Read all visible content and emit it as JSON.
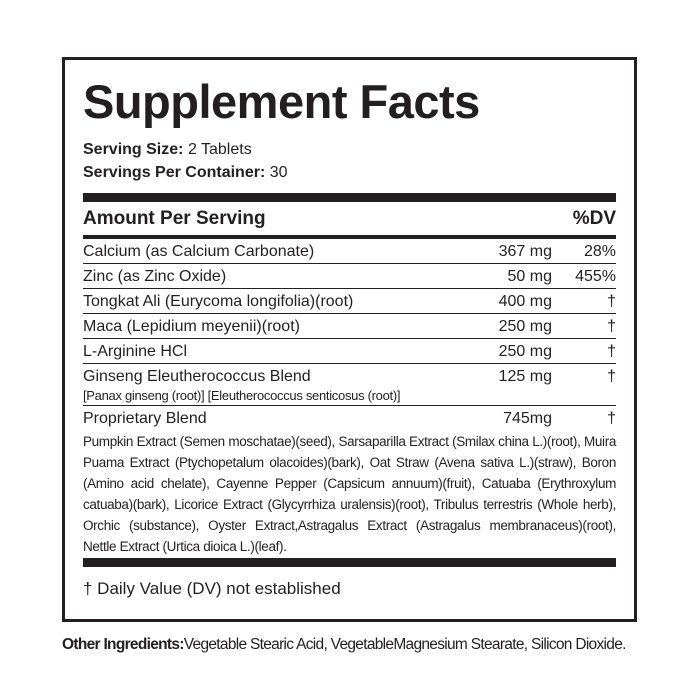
{
  "title": "Supplement Facts",
  "serving_size": {
    "label": "Serving Size:",
    "value": "2 Tablets"
  },
  "servings_per_container": {
    "label": "Servings Per Container:",
    "value": "30"
  },
  "table": {
    "header": {
      "amount": "Amount Per Serving",
      "dv": "%DV"
    },
    "rows": [
      {
        "name": "Calcium (as Calcium Carbonate)",
        "amount": "367 mg",
        "dv": "28%"
      },
      {
        "name": "Zinc (as Zinc Oxide)",
        "amount": "50 mg",
        "dv": "455%"
      },
      {
        "name": "Tongkat Ali (Eurycoma longifolia)(root)",
        "amount": "400 mg",
        "dv": "†"
      },
      {
        "name": "Maca (Lepidium meyenii)(root)",
        "amount": "250 mg",
        "dv": "†"
      },
      {
        "name": "L-Arginine HCl",
        "amount": "250 mg",
        "dv": "†"
      },
      {
        "name": "Ginseng Eleutherococcus Blend",
        "amount": "125 mg",
        "dv": "†",
        "detail": "[Panax ginseng (root)] [Eleutherococcus senticosus (root)]"
      },
      {
        "name": "Proprietary Blend",
        "amount": "745mg",
        "dv": "†",
        "detail": "Pumpkin Extract (Semen moschatae)(seed), Sarsaparilla Extract (Smilax china L.)(root), Muira Puama Extract (Ptychopetalum olacoides)(bark), Oat Straw (Avena sativa L.)(straw), Boron (Amino acid chelate), Cayenne Pepper (Capsicum annuum)(fruit), Catuaba (Erythroxylum catuaba)(bark), Licorice Extract (Glycyrrhiza uralensis)(root), Tribulus terrestris (Whole herb), Orchic (substance), Oyster Extract,Astragalus Extract (Astragalus membranaceus)(root), Nettle Extract (Urtica dioica L.)(leaf)."
      }
    ]
  },
  "footnote": "† Daily Value (DV) not established",
  "other_ingredients": {
    "label": "Other Ingredients:",
    "text": "Vegetable Stearic Acid, VegetableMagnesium Stearate, Silicon Dioxide."
  }
}
